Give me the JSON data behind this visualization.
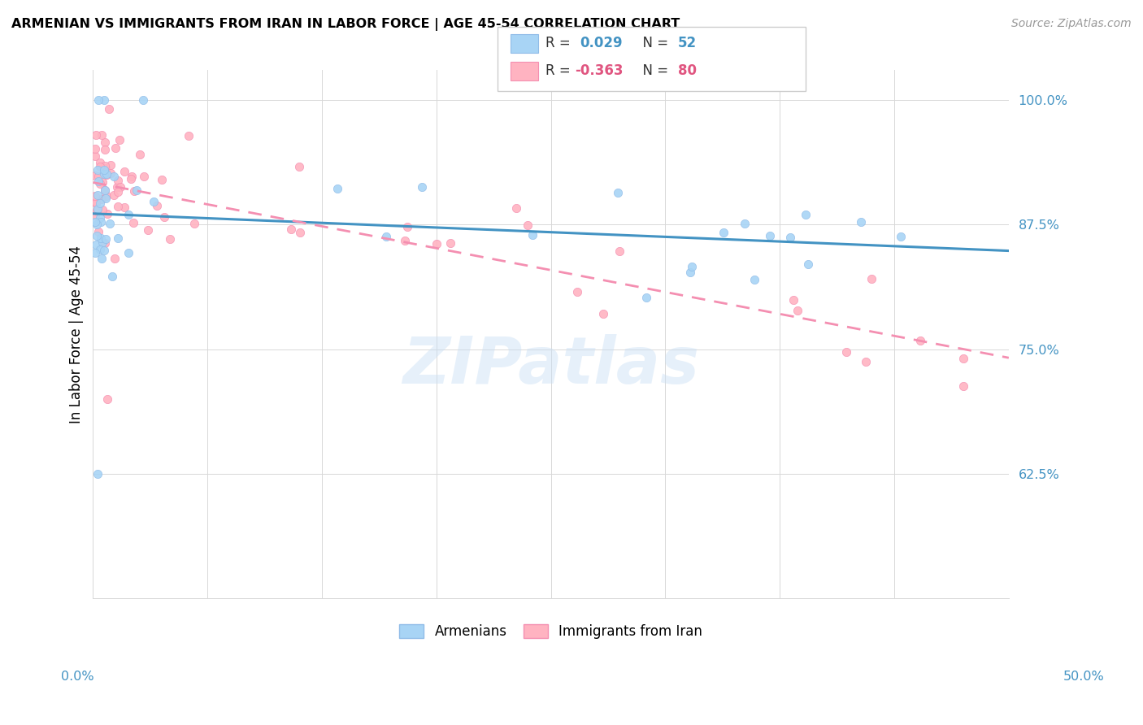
{
  "title": "ARMENIAN VS IMMIGRANTS FROM IRAN IN LABOR FORCE | AGE 45-54 CORRELATION CHART",
  "source": "Source: ZipAtlas.com",
  "ylabel": "In Labor Force | Age 45-54",
  "xmin": 0.0,
  "xmax": 0.5,
  "ymin": 0.5,
  "ymax": 1.03,
  "watermark": "ZIPatlas",
  "R_armenians": 0.029,
  "N_armenians": 52,
  "R_iran": -0.363,
  "N_iran": 80,
  "armenians_color": "#a8d4f5",
  "armenians_edge": "#90bce8",
  "iran_color": "#ffb3c1",
  "iran_edge": "#f48fb1",
  "line_blue": "#4393c3",
  "line_pink": "#f48fb1",
  "ytick_color": "#4393c3",
  "xtick_color": "#4393c3"
}
